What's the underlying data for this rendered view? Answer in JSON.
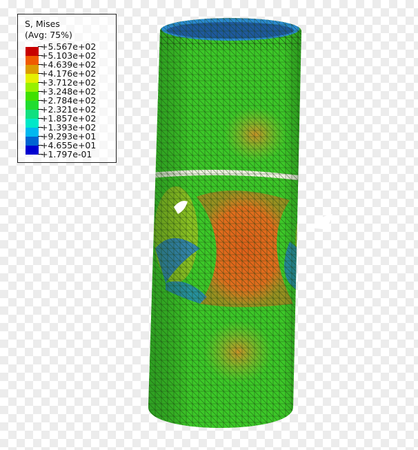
{
  "legend": {
    "title": "S, Mises",
    "subtitle": "(Avg: 75%)",
    "values": [
      "+5.567e+02",
      "+5.103e+02",
      "+4.639e+02",
      "+4.176e+02",
      "+3.712e+02",
      "+3.248e+02",
      "+2.784e+02",
      "+2.321e+02",
      "+1.857e+02",
      "+1.393e+02",
      "+9.293e+01",
      "+4.655e+01",
      "+1.797e-01"
    ],
    "colors": [
      "#c80000",
      "#f05a00",
      "#dc9c00",
      "#e6f000",
      "#98f000",
      "#40e000",
      "#20dc30",
      "#10e080",
      "#00e8c8",
      "#00b8f0",
      "#0064d2",
      "#0000d0"
    ]
  },
  "model": {
    "base_color": "#3cc828",
    "hot_color": "#e0601a",
    "warm_color": "#c8a020",
    "cool_color": "#1e78d0"
  }
}
